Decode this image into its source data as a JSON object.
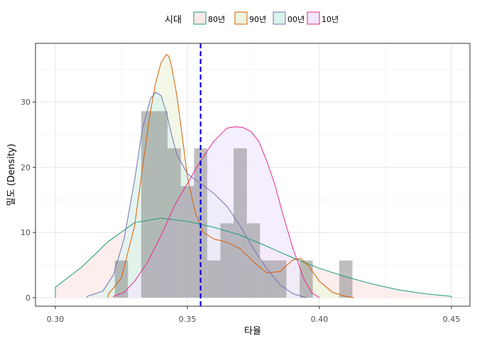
{
  "chart_data": {
    "type": "area",
    "xlabel": "타율",
    "ylabel": "밀도 (Density)",
    "xlim": [
      0.3,
      0.45
    ],
    "ylim": [
      0,
      37.5
    ],
    "xticks": [
      "0.30",
      "0.35",
      "0.40",
      "0.45"
    ],
    "yticks": [
      "0",
      "10",
      "20",
      "30"
    ],
    "legend": {
      "title": "시대",
      "position": "top"
    },
    "grid": true,
    "vline": {
      "x": 0.355,
      "color": "#0000dd",
      "style": "dashed"
    },
    "histogram": {
      "bin_width": 0.005,
      "color": "#808080",
      "bars": [
        {
          "x0": 0.3225,
          "density": 5.7
        },
        {
          "x0": 0.3325,
          "density": 28.6
        },
        {
          "x0": 0.3375,
          "density": 28.6
        },
        {
          "x0": 0.3425,
          "density": 22.9
        },
        {
          "x0": 0.3475,
          "density": 17.1
        },
        {
          "x0": 0.3525,
          "density": 22.9
        },
        {
          "x0": 0.3575,
          "density": 5.7
        },
        {
          "x0": 0.3625,
          "density": 11.4
        },
        {
          "x0": 0.3675,
          "density": 22.9
        },
        {
          "x0": 0.3725,
          "density": 11.4
        },
        {
          "x0": 0.3775,
          "density": 5.7
        },
        {
          "x0": 0.3825,
          "density": 5.7
        },
        {
          "x0": 0.3925,
          "density": 5.7
        },
        {
          "x0": 0.4075,
          "density": 5.7
        }
      ]
    },
    "series": [
      {
        "name": "80년",
        "color": "#1b9e77",
        "fill": "#fce8e8",
        "x": [
          0.3,
          0.31,
          0.32,
          0.33,
          0.34,
          0.35,
          0.36,
          0.37,
          0.38,
          0.39,
          0.4,
          0.41,
          0.42,
          0.43,
          0.44,
          0.45
        ],
        "y": [
          1.6,
          4.7,
          8.6,
          11.5,
          12.2,
          11.7,
          10.8,
          9.6,
          7.9,
          6.1,
          4.5,
          3.2,
          2.1,
          1.2,
          0.6,
          0.2
        ]
      },
      {
        "name": "90년",
        "color": "#d95f02",
        "fill": "#edf4df",
        "x": [
          0.32,
          0.325,
          0.33,
          0.333,
          0.336,
          0.338,
          0.34,
          0.342,
          0.343,
          0.344,
          0.346,
          0.348,
          0.35,
          0.353,
          0.356,
          0.36,
          0.365,
          0.37,
          0.375,
          0.38,
          0.385,
          0.39,
          0.393,
          0.396,
          0.4,
          0.405,
          0.41,
          0.413
        ],
        "y": [
          0.5,
          3.0,
          11.0,
          20.0,
          28.5,
          33.0,
          36.0,
          37.3,
          37.0,
          35.5,
          31.0,
          25.0,
          18.5,
          13.0,
          10.0,
          9.0,
          8.5,
          7.5,
          5.5,
          3.8,
          4.0,
          5.8,
          6.0,
          4.8,
          2.5,
          0.8,
          0.2,
          0.0
        ]
      },
      {
        "name": "00년",
        "color": "#7570b3",
        "fill": "#dcf2ec",
        "x": [
          0.312,
          0.318,
          0.322,
          0.326,
          0.33,
          0.333,
          0.336,
          0.338,
          0.34,
          0.342,
          0.344,
          0.346,
          0.35,
          0.355,
          0.36,
          0.365,
          0.37,
          0.375,
          0.38,
          0.385,
          0.39,
          0.395
        ],
        "y": [
          0.2,
          1.0,
          3.5,
          9.0,
          18.0,
          26.0,
          30.5,
          31.5,
          31.0,
          28.5,
          25.0,
          22.0,
          19.0,
          17.5,
          16.0,
          14.0,
          11.0,
          7.5,
          4.5,
          2.0,
          0.6,
          0.0
        ]
      },
      {
        "name": "10년",
        "color": "#e7298a",
        "fill": "#f0e8fc",
        "x": [
          0.322,
          0.326,
          0.33,
          0.335,
          0.34,
          0.345,
          0.35,
          0.355,
          0.36,
          0.365,
          0.368,
          0.371,
          0.374,
          0.377,
          0.38,
          0.383,
          0.386,
          0.39,
          0.394,
          0.397,
          0.4
        ],
        "y": [
          0.2,
          0.8,
          2.5,
          5.5,
          9.5,
          14.0,
          17.5,
          21.0,
          24.0,
          26.0,
          26.2,
          26.1,
          25.5,
          24.0,
          21.0,
          17.5,
          13.0,
          7.5,
          3.0,
          0.8,
          0.0
        ]
      }
    ]
  }
}
